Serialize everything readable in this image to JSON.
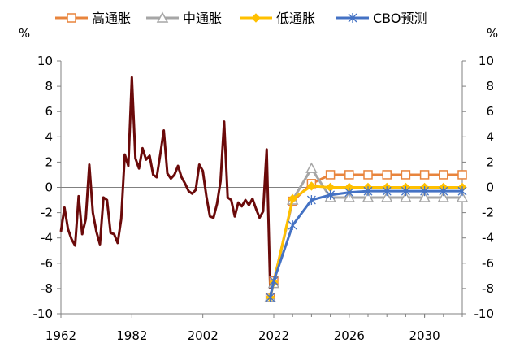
{
  "chart_data": {
    "type": "line",
    "y_unit_left": "%",
    "y_unit_right": "%",
    "ylim": [
      -10,
      10
    ],
    "y_ticks": [
      -10,
      -8,
      -6,
      -4,
      -2,
      0,
      2,
      4,
      6,
      8,
      10
    ],
    "y_tick_labels": [
      "-10",
      "-8",
      "-6",
      "-4",
      "-2",
      "0",
      "2",
      "4",
      "6",
      "8",
      "10"
    ],
    "xlim": [
      1962,
      2032
    ],
    "x_ticks": [
      1962,
      1982,
      2002,
      2022,
      2026,
      2030
    ],
    "x_tick_labels": [
      "1962",
      "1982",
      "2002",
      "2022",
      "2026",
      "2030"
    ],
    "legend_position": "top",
    "legend": [
      {
        "label": "高通胀",
        "series": "high",
        "color": "#E8843C",
        "marker": "square-open"
      },
      {
        "label": "中通胀",
        "series": "mid",
        "color": "#A6A6A6",
        "marker": "triangle-open"
      },
      {
        "label": "低通胀",
        "series": "low",
        "color": "#FFC000",
        "marker": "diamond"
      },
      {
        "label": "CBO预测",
        "series": "cbo",
        "color": "#4472C4",
        "marker": "asterisk"
      }
    ],
    "historical": {
      "color": "#6B0A0A",
      "x": [
        1962,
        1963,
        1964,
        1965,
        1966,
        1967,
        1968,
        1969,
        1970,
        1971,
        1972,
        1973,
        1974,
        1975,
        1976,
        1977,
        1978,
        1979,
        1980,
        1981,
        1982,
        1983,
        1984,
        1985,
        1986,
        1987,
        1988,
        1989,
        1990,
        1991,
        1992,
        1993,
        1994,
        1995,
        1996,
        1997,
        1998,
        1999,
        2000,
        2001,
        2002,
        2003,
        2004,
        2005,
        2006,
        2007,
        2008,
        2009,
        2010,
        2011,
        2012,
        2013,
        2014,
        2015,
        2016,
        2017,
        2018,
        2019,
        2020,
        2021
      ],
      "y": [
        -3.5,
        -1.6,
        -3.3,
        -4.1,
        -4.6,
        -0.7,
        -3.7,
        -2.5,
        1.8,
        -2.0,
        -3.5,
        -4.5,
        -0.8,
        -1.0,
        -3.6,
        -3.7,
        -4.4,
        -2.5,
        2.6,
        1.7,
        8.7,
        2.3,
        1.5,
        3.1,
        2.2,
        2.5,
        1.0,
        0.8,
        2.6,
        4.5,
        1.1,
        0.7,
        1.0,
        1.7,
        0.8,
        0.3,
        -0.3,
        -0.5,
        -0.2,
        1.8,
        1.3,
        -0.7,
        -2.3,
        -2.4,
        -1.3,
        0.5,
        5.2,
        -0.8,
        -1.0,
        -2.3,
        -1.2,
        -1.5,
        -1.0,
        -1.4,
        -0.9,
        -1.7,
        -2.4,
        -1.9,
        3.0,
        -8.0
      ]
    },
    "series": [
      {
        "key": "high",
        "name": "高通胀",
        "x": [
          2021,
          2022,
          2023,
          2024,
          2025,
          2026,
          2027,
          2028,
          2029,
          2030,
          2031,
          2032
        ],
        "y": [
          -8.7,
          -7.4,
          -1.1,
          0.3,
          1.0,
          1.0,
          1.0,
          1.0,
          1.0,
          1.0,
          1.0,
          1.0
        ]
      },
      {
        "key": "mid",
        "name": "中通胀",
        "x": [
          2021,
          2022,
          2023,
          2024,
          2025,
          2026,
          2027,
          2028,
          2029,
          2030,
          2031,
          2032
        ],
        "y": [
          -8.7,
          -7.6,
          -1.0,
          1.5,
          -0.8,
          -0.8,
          -0.8,
          -0.8,
          -0.8,
          -0.8,
          -0.8,
          -0.8
        ]
      },
      {
        "key": "low",
        "name": "低通胀",
        "x": [
          2021,
          2022,
          2023,
          2024,
          2025,
          2026,
          2027,
          2028,
          2029,
          2030,
          2031,
          2032
        ],
        "y": [
          -8.7,
          -7.5,
          -0.9,
          0.1,
          0.0,
          0.0,
          0.0,
          0.0,
          0.0,
          0.0,
          0.0,
          0.0
        ]
      },
      {
        "key": "cbo",
        "name": "CBO预测",
        "x": [
          2021,
          2022,
          2023,
          2024,
          2025,
          2026,
          2027,
          2028,
          2029,
          2030,
          2031,
          2032
        ],
        "y": [
          -8.7,
          -7.4,
          -3.0,
          -1.0,
          -0.6,
          -0.4,
          -0.3,
          -0.3,
          -0.3,
          -0.3,
          -0.3,
          -0.3
        ]
      }
    ]
  }
}
